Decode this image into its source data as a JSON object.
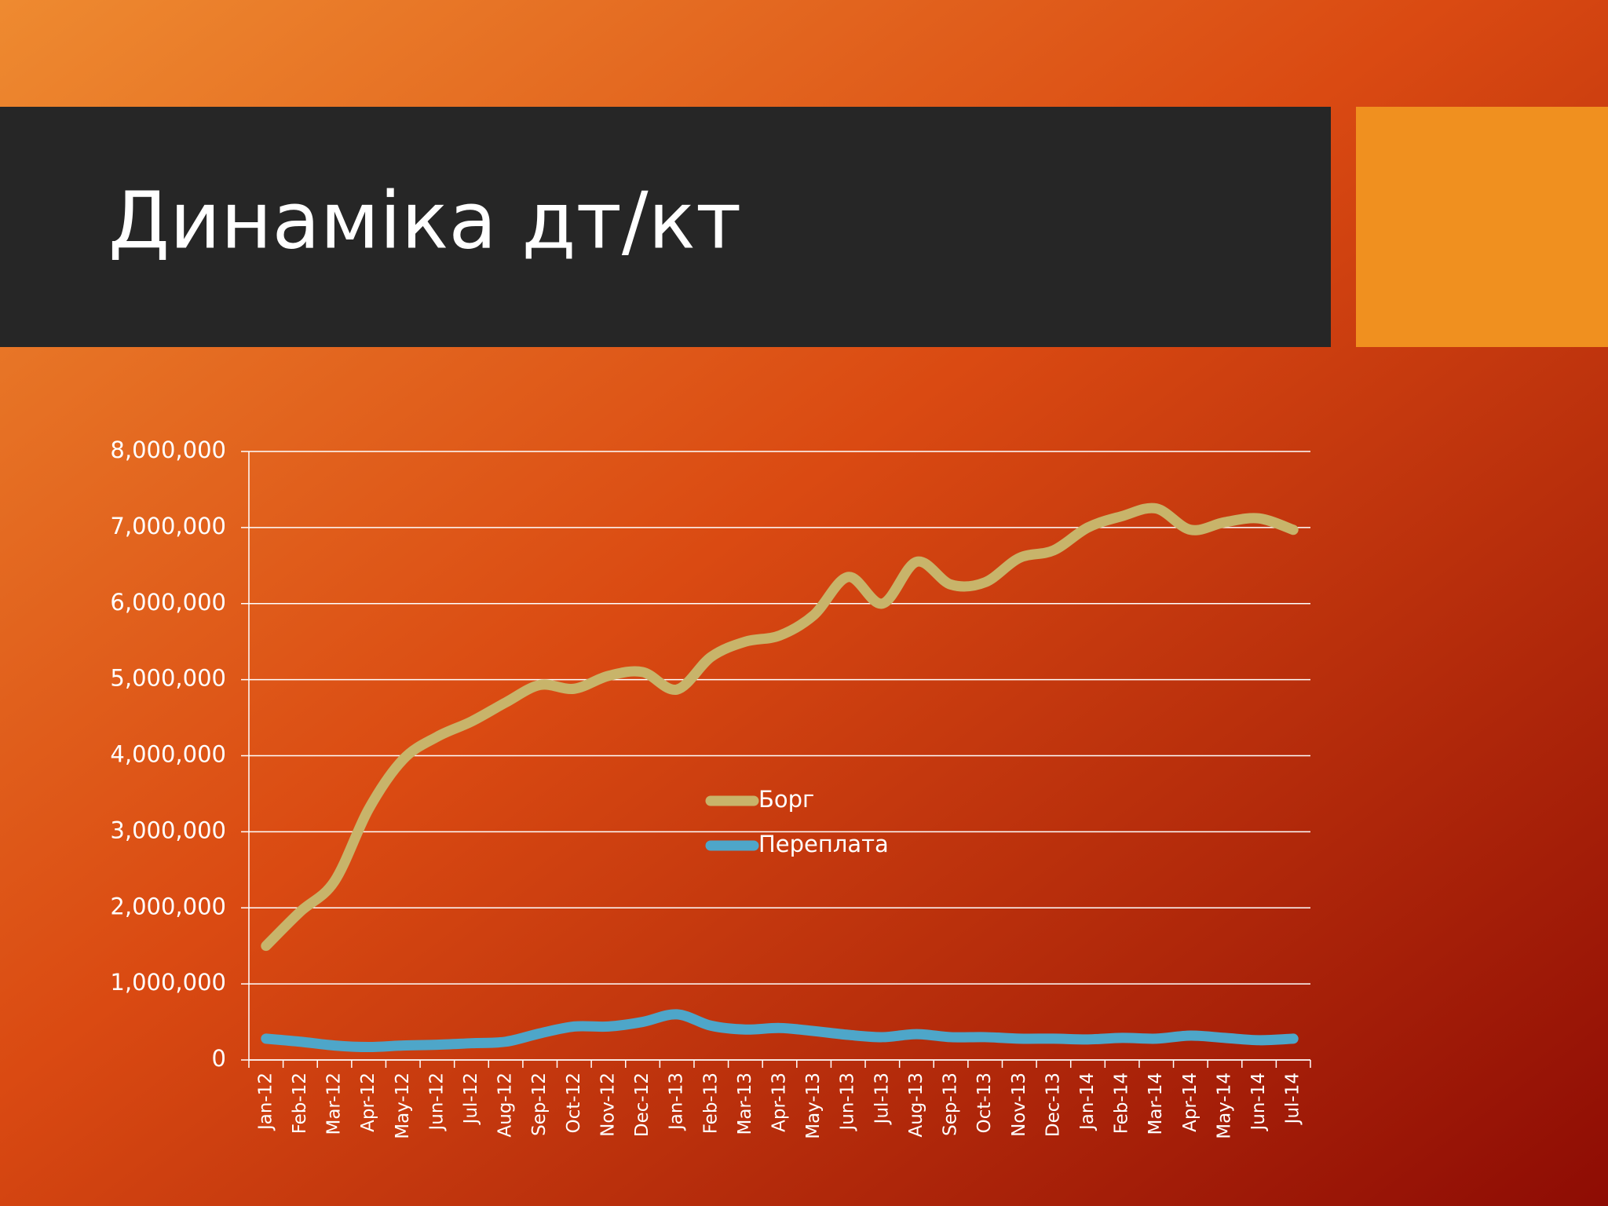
{
  "chart_data": {
    "type": "line",
    "title": "Динаміка дт/кт",
    "categories": [
      "Jan-12",
      "Feb-12",
      "Mar-12",
      "Apr-12",
      "May-12",
      "Jun-12",
      "Jul-12",
      "Aug-12",
      "Sep-12",
      "Oct-12",
      "Nov-12",
      "Dec-12",
      "Jan-13",
      "Feb-13",
      "Mar-13",
      "Apr-13",
      "May-13",
      "Jun-13",
      "Jul-13",
      "Aug-13",
      "Sep-13",
      "Oct-13",
      "Nov-13",
      "Dec-13",
      "Jan-14",
      "Feb-14",
      "Mar-14",
      "Apr-14",
      "May-14",
      "Jun-14",
      "Jul-14"
    ],
    "series": [
      {
        "name": "Борг",
        "color": "#c8b46a",
        "values": [
          1500000,
          1950000,
          2350000,
          3300000,
          3950000,
          4250000,
          4450000,
          4700000,
          4930000,
          4880000,
          5050000,
          5100000,
          4870000,
          5300000,
          5500000,
          5580000,
          5850000,
          6350000,
          6000000,
          6550000,
          6250000,
          6280000,
          6600000,
          6700000,
          7000000,
          7150000,
          7250000,
          6970000,
          7070000,
          7120000,
          6970000
        ]
      },
      {
        "name": "Переплата",
        "color": "#4ea6c9",
        "values": [
          280000,
          240000,
          190000,
          170000,
          190000,
          200000,
          220000,
          240000,
          350000,
          440000,
          440000,
          500000,
          600000,
          450000,
          400000,
          420000,
          380000,
          330000,
          300000,
          340000,
          300000,
          300000,
          280000,
          280000,
          270000,
          290000,
          280000,
          320000,
          290000,
          260000,
          280000
        ]
      }
    ],
    "ylim": [
      0,
      8000000
    ],
    "yticks": [
      0,
      {
        "value": 1000000,
        "label": "1,000,000"
      },
      {
        "value": 2000000,
        "label": "2,000,000"
      },
      {
        "value": 3000000,
        "label": "3,000,000"
      },
      {
        "value": 4000000,
        "label": "4,000,000"
      },
      {
        "value": 5000000,
        "label": "5,000,000"
      },
      {
        "value": 6000000,
        "label": "6,000,000"
      },
      {
        "value": 7000000,
        "label": "7,000,000"
      },
      {
        "value": 8000000,
        "label": "8,000,000"
      }
    ],
    "grid": true,
    "legend": "center"
  }
}
